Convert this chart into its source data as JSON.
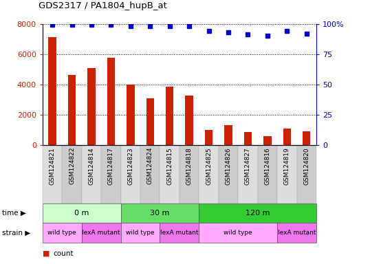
{
  "title": "GDS2317 / PA1804_hupB_at",
  "categories": [
    "GSM124821",
    "GSM124822",
    "GSM124814",
    "GSM124817",
    "GSM124823",
    "GSM124824",
    "GSM124815",
    "GSM124818",
    "GSM124825",
    "GSM124826",
    "GSM124827",
    "GSM124816",
    "GSM124819",
    "GSM124820"
  ],
  "bar_values": [
    7100,
    4650,
    5100,
    5750,
    4000,
    3100,
    3850,
    3250,
    1000,
    1300,
    850,
    600,
    1100,
    900
  ],
  "bar_color": "#cc2200",
  "percentile_values": [
    99,
    99,
    99,
    99,
    98,
    98,
    98,
    98,
    94,
    93,
    91,
    90,
    94,
    92
  ],
  "percentile_color": "#0000cc",
  "ylim_left": [
    0,
    8000
  ],
  "ylim_right": [
    0,
    100
  ],
  "yticks_left": [
    0,
    2000,
    4000,
    6000,
    8000
  ],
  "yticks_right": [
    0,
    25,
    50,
    75,
    100
  ],
  "ytick_labels_right": [
    "0",
    "25",
    "50",
    "75",
    "100%"
  ],
  "grid_values": [
    2000,
    4000,
    6000,
    8000
  ],
  "time_groups": [
    {
      "label": "0 m",
      "start": 0,
      "end": 3,
      "color": "#ccffcc"
    },
    {
      "label": "30 m",
      "start": 4,
      "end": 7,
      "color": "#66dd66"
    },
    {
      "label": "120 m",
      "start": 8,
      "end": 13,
      "color": "#33cc33"
    }
  ],
  "strain_groups": [
    {
      "label": "wild type",
      "start": 0,
      "end": 1,
      "color": "#ffaaff"
    },
    {
      "label": "lexA mutant",
      "start": 2,
      "end": 3,
      "color": "#ee77ee"
    },
    {
      "label": "wild type",
      "start": 4,
      "end": 5,
      "color": "#ffaaff"
    },
    {
      "label": "lexA mutant",
      "start": 6,
      "end": 7,
      "color": "#ee77ee"
    },
    {
      "label": "wild type",
      "start": 8,
      "end": 11,
      "color": "#ffaaff"
    },
    {
      "label": "lexA mutant",
      "start": 12,
      "end": 13,
      "color": "#ee77ee"
    }
  ],
  "bar_width": 0.4,
  "plot_bg": "#f0f0f0",
  "fig_bg": "#ffffff",
  "time_label": "time",
  "strain_label": "strain"
}
